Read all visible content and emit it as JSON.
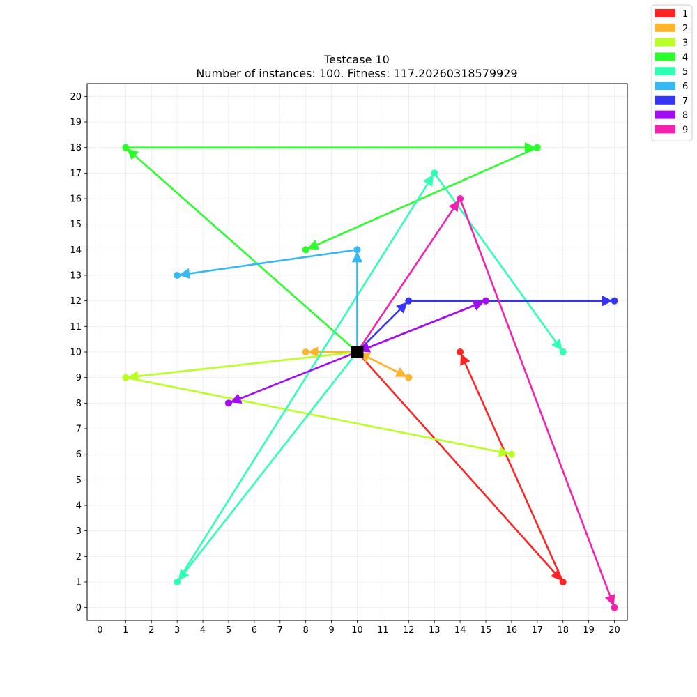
{
  "chart_data": {
    "type": "scatter",
    "title": "Testcase 10",
    "subtitle": "Number of instances: 100. Fitness: 117.20260318579929",
    "xlabel": "",
    "ylabel": "",
    "xlim": [
      -0.5,
      20.5
    ],
    "ylim": [
      -0.5,
      20.5
    ],
    "xticks": [
      0,
      1,
      2,
      3,
      4,
      5,
      6,
      7,
      8,
      9,
      10,
      11,
      12,
      13,
      14,
      15,
      16,
      17,
      18,
      19,
      20
    ],
    "yticks": [
      0,
      1,
      2,
      3,
      4,
      5,
      6,
      7,
      8,
      9,
      10,
      11,
      12,
      13,
      14,
      15,
      16,
      17,
      18,
      19,
      20
    ],
    "grid": true,
    "legend_position": "top-right outside",
    "depot": {
      "x": 10,
      "y": 10,
      "color": "#000000"
    },
    "series": [
      {
        "name": "1",
        "color": "#ff2424",
        "points": [
          [
            10,
            10
          ],
          [
            18,
            1
          ],
          [
            14,
            10
          ]
        ]
      },
      {
        "name": "2",
        "color": "#ffb42e",
        "points": [
          [
            10,
            10
          ],
          [
            12,
            9
          ],
          [
            10,
            10
          ],
          [
            8,
            10
          ]
        ]
      },
      {
        "name": "3",
        "color": "#b9ff24",
        "points": [
          [
            10,
            10
          ],
          [
            1,
            9
          ],
          [
            16,
            6
          ]
        ]
      },
      {
        "name": "4",
        "color": "#2aff2a",
        "points": [
          [
            10,
            10
          ],
          [
            1,
            18
          ],
          [
            17,
            18
          ],
          [
            8,
            14
          ]
        ]
      },
      {
        "name": "5",
        "color": "#2effb4",
        "points": [
          [
            10,
            10
          ],
          [
            3,
            1
          ],
          [
            13,
            17
          ],
          [
            18,
            10
          ]
        ]
      },
      {
        "name": "6",
        "color": "#35b8f3",
        "points": [
          [
            10,
            10
          ],
          [
            10,
            14
          ],
          [
            3,
            13
          ]
        ]
      },
      {
        "name": "7",
        "color": "#3535f3",
        "points": [
          [
            10,
            10
          ],
          [
            12,
            12
          ],
          [
            20,
            12
          ]
        ]
      },
      {
        "name": "8",
        "color": "#a30cf3",
        "points": [
          [
            10,
            10
          ],
          [
            15,
            12
          ],
          [
            10,
            10
          ],
          [
            5,
            8
          ]
        ]
      },
      {
        "name": "9",
        "color": "#f320b0",
        "points": [
          [
            10,
            10
          ],
          [
            14,
            16
          ],
          [
            20,
            0
          ]
        ]
      }
    ]
  }
}
